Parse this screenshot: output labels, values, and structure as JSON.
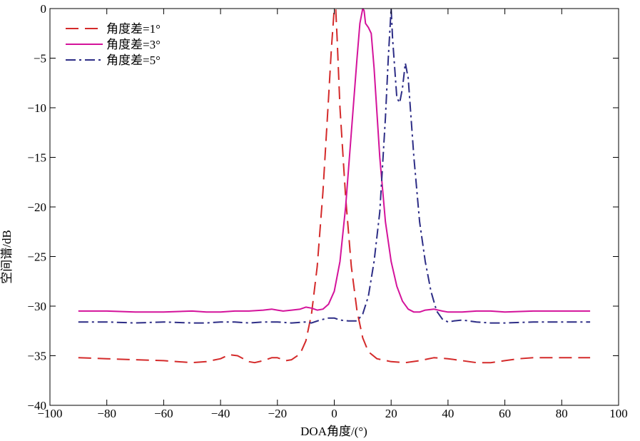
{
  "chart_data": {
    "type": "line",
    "xlabel": "DOA角度/(°)",
    "ylabel": "空间谱/dB",
    "xlim": [
      -100,
      100
    ],
    "ylim": [
      -40,
      0
    ],
    "xticks": [
      -100,
      -80,
      -60,
      -40,
      -20,
      0,
      20,
      40,
      60,
      80,
      100
    ],
    "yticks": [
      0,
      -5,
      -10,
      -15,
      -20,
      -25,
      -30,
      -35,
      -40
    ],
    "xtick_labels": [
      "−100",
      "−80",
      "−60",
      "−40",
      "−20",
      "0",
      "20",
      "40",
      "60",
      "80",
      "100"
    ],
    "ytick_labels": [
      "0",
      "−5",
      "−10",
      "−15",
      "−20",
      "−25",
      "−30",
      "−35",
      "−40"
    ],
    "grid": false,
    "legend_position": "top-left",
    "series": [
      {
        "name": "角度差=1°",
        "color": "#d42a2a",
        "dash": "dashed",
        "x": [
          -90,
          -80,
          -70,
          -60,
          -50,
          -45,
          -40,
          -37,
          -34,
          -30,
          -28,
          -25,
          -22,
          -20,
          -17,
          -15,
          -12,
          -10,
          -8,
          -6,
          -4,
          -2,
          -1,
          0,
          0.5,
          1,
          2,
          4,
          6,
          8,
          10,
          12,
          15,
          20,
          25,
          30,
          35,
          40,
          45,
          50,
          55,
          60,
          65,
          70,
          80,
          90
        ],
        "y": [
          -35.2,
          -35.3,
          -35.4,
          -35.5,
          -35.7,
          -35.6,
          -35.3,
          -34.9,
          -35.0,
          -35.6,
          -35.7,
          -35.5,
          -35.2,
          -35.2,
          -35.5,
          -35.4,
          -34.8,
          -33.5,
          -30.8,
          -26,
          -18.5,
          -9,
          -4,
          0,
          0,
          -3,
          -10,
          -19,
          -26,
          -30.5,
          -33.2,
          -34.6,
          -35.3,
          -35.6,
          -35.7,
          -35.5,
          -35.2,
          -35.3,
          -35.5,
          -35.7,
          -35.7,
          -35.5,
          -35.3,
          -35.2,
          -35.2,
          -35.2
        ]
      },
      {
        "name": "角度差=3°",
        "color": "#d4139b",
        "dash": "solid",
        "x": [
          -90,
          -80,
          -70,
          -60,
          -50,
          -45,
          -40,
          -35,
          -30,
          -25,
          -22,
          -20,
          -18,
          -15,
          -12,
          -10,
          -8,
          -6,
          -4,
          -2,
          0,
          2,
          4,
          6,
          8,
          9,
          10,
          10.5,
          11,
          12,
          13,
          14,
          15,
          16,
          18,
          20,
          22,
          24,
          26,
          28,
          30,
          32,
          35,
          38,
          40,
          45,
          50,
          55,
          60,
          70,
          80,
          90
        ],
        "y": [
          -30.5,
          -30.5,
          -30.6,
          -30.6,
          -30.5,
          -30.6,
          -30.6,
          -30.5,
          -30.5,
          -30.4,
          -30.3,
          -30.4,
          -30.5,
          -30.4,
          -30.3,
          -30.1,
          -30.2,
          -30.4,
          -30.3,
          -29.8,
          -28.5,
          -25.5,
          -20,
          -12.5,
          -5,
          -1.5,
          0,
          -0.2,
          -1.5,
          -1.9,
          -2.5,
          -6,
          -10.5,
          -15,
          -21.5,
          -25.5,
          -28,
          -29.5,
          -30.3,
          -30.6,
          -30.6,
          -30.4,
          -30.3,
          -30.5,
          -30.6,
          -30.6,
          -30.5,
          -30.5,
          -30.6,
          -30.5,
          -30.5,
          -30.5
        ]
      },
      {
        "name": "角度差=5°",
        "color": "#2d2d86",
        "dash": "dashdot",
        "x": [
          -90,
          -80,
          -70,
          -60,
          -50,
          -45,
          -40,
          -35,
          -30,
          -25,
          -20,
          -15,
          -10,
          -8,
          -5,
          -2,
          0,
          2,
          5,
          8,
          10,
          12,
          14,
          16,
          18,
          19,
          20,
          20.5,
          21,
          22,
          23,
          24,
          25,
          26,
          27,
          28,
          30,
          32,
          34,
          36,
          38,
          40,
          42,
          45,
          50,
          55,
          60,
          70,
          80,
          90
        ],
        "y": [
          -31.6,
          -31.6,
          -31.7,
          -31.6,
          -31.7,
          -31.7,
          -31.6,
          -31.6,
          -31.7,
          -31.6,
          -31.6,
          -31.7,
          -31.6,
          -31.7,
          -31.4,
          -31.2,
          -31.2,
          -31.4,
          -31.5,
          -31.5,
          -30.8,
          -29,
          -25.5,
          -20.5,
          -11,
          -5,
          0,
          -3,
          -5,
          -9,
          -9.5,
          -8,
          -5.5,
          -7,
          -11,
          -15,
          -21.5,
          -25.5,
          -28.5,
          -30.5,
          -31.3,
          -31.6,
          -31.5,
          -31.4,
          -31.6,
          -31.7,
          -31.7,
          -31.6,
          -31.6,
          -31.6
        ]
      }
    ]
  }
}
